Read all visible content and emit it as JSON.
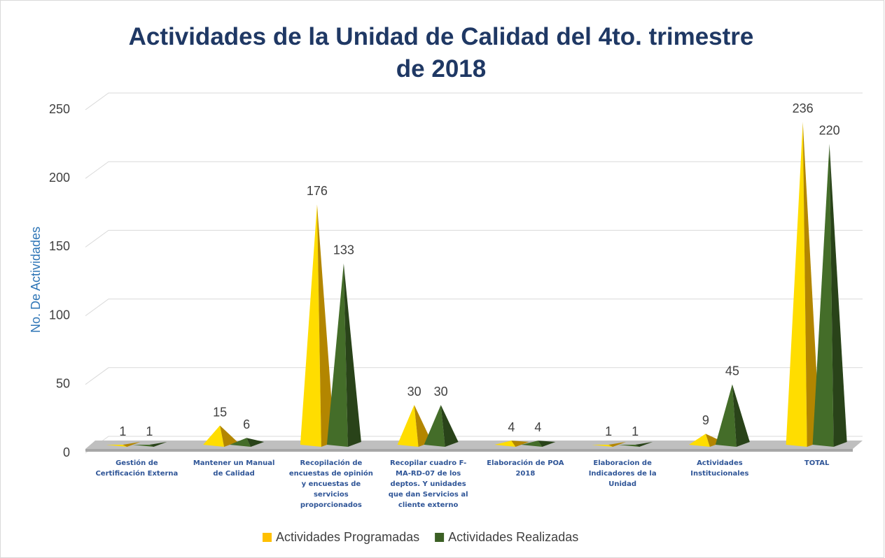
{
  "chart_data": {
    "type": "pyramid",
    "title": "Actividades de la Unidad de Calidad del 4to. trimestre de 2018",
    "y_label": "No. De Actividades",
    "categories": [
      "Gestión de Certificación Externa",
      "Mantener un Manual de Calidad",
      "Recopilación de encuestas de opinión y encuestas de servicios proporcionados",
      "Recopilar cuadro F-MA-RD-07 de los deptos. Y unidades que dan Servicios al cliente externo",
      "Elaboración de POA 2018",
      "Elaboracion de Indicadores de la Unidad",
      "Actividades Institucionales",
      "TOTAL"
    ],
    "series": [
      {
        "name": "Actividades Programadas",
        "color": "#ffc000",
        "values": [
          1,
          15,
          176,
          30,
          4,
          1,
          9,
          236
        ]
      },
      {
        "name": "Actividades Realizadas",
        "color": "#3b5f24",
        "values": [
          1,
          6,
          133,
          30,
          4,
          1,
          45,
          220
        ]
      }
    ],
    "ylim": [
      0,
      250
    ],
    "yticks": [
      0,
      50,
      100,
      150,
      200,
      250
    ],
    "grid": true,
    "legend": "bottom"
  }
}
